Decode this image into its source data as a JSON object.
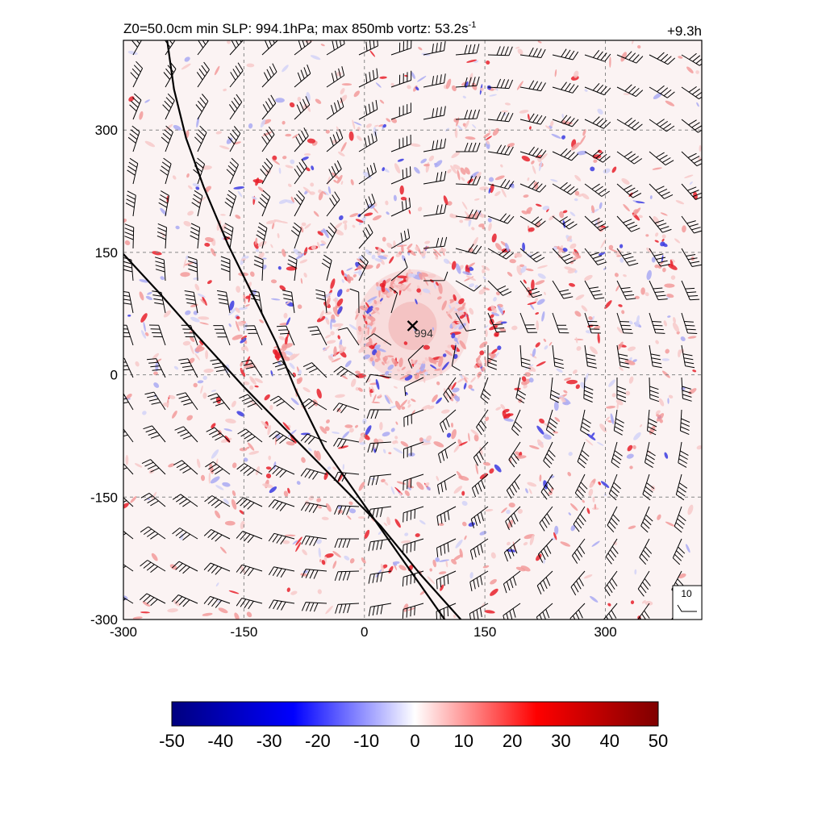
{
  "figure": {
    "title": "Z0=50.0cm  min SLP: 994.1hPa; max 850mb vortz:  53.2s",
    "title_sup": "-1",
    "time_label": "+9.3h",
    "center_marker_label": "994",
    "reference_vector_label": "10"
  },
  "chart_data": [
    {
      "type": "heatmap",
      "title": "",
      "xlabel": "",
      "ylabel": "",
      "x_range": [
        -300,
        420
      ],
      "y_range": [
        -300,
        410
      ],
      "x_ticks": [
        -300,
        -150,
        0,
        150,
        300
      ],
      "y_ticks": [
        -300,
        -150,
        0,
        150,
        300
      ],
      "grid": true,
      "grid_lines_x": [
        -150,
        0,
        150,
        300
      ],
      "grid_lines_y": [
        -150,
        0,
        150,
        300
      ],
      "field": "850mb relative vorticity",
      "field_max": 53.2,
      "low_center": {
        "x": 60,
        "y": 60,
        "slp": 994.1
      },
      "coast_lines": [
        {
          "points": [
            [
              -247,
              420
            ],
            [
              -237,
              350
            ],
            [
              -222,
              290
            ],
            [
              -200,
              230
            ],
            [
              -170,
              160
            ],
            [
              -140,
              100
            ],
            [
              -110,
              40
            ],
            [
              -85,
              -20
            ],
            [
              -50,
              -90
            ],
            [
              0,
              -160
            ],
            [
              50,
              -230
            ],
            [
              100,
              -300
            ]
          ]
        },
        {
          "points": [
            [
              -300,
              148
            ],
            [
              -255,
              100
            ],
            [
              -210,
              50
            ],
            [
              -150,
              -15
            ],
            [
              -90,
              -75
            ],
            [
              -30,
              -135
            ],
            [
              20,
              -185
            ],
            [
              70,
              -245
            ],
            [
              120,
              -300
            ]
          ]
        }
      ],
      "wind_barbs": "cyclonic circulation around low center"
    },
    {
      "type": "heatmap",
      "title": "",
      "colorbar": true,
      "range": [
        -50,
        50
      ],
      "ticks": [
        -50,
        -40,
        -30,
        -20,
        -10,
        0,
        10,
        20,
        30,
        40,
        50
      ],
      "tick_labels": [
        "-50",
        "-40",
        "-30",
        "-20",
        "-10",
        "0",
        "10",
        "20",
        "30",
        "40",
        "50"
      ],
      "colors": {
        "low": "#00007f",
        "mid_low": "#0000ff",
        "center": "#ffffff",
        "mid_high": "#ff0000",
        "high": "#7f0000"
      }
    }
  ]
}
